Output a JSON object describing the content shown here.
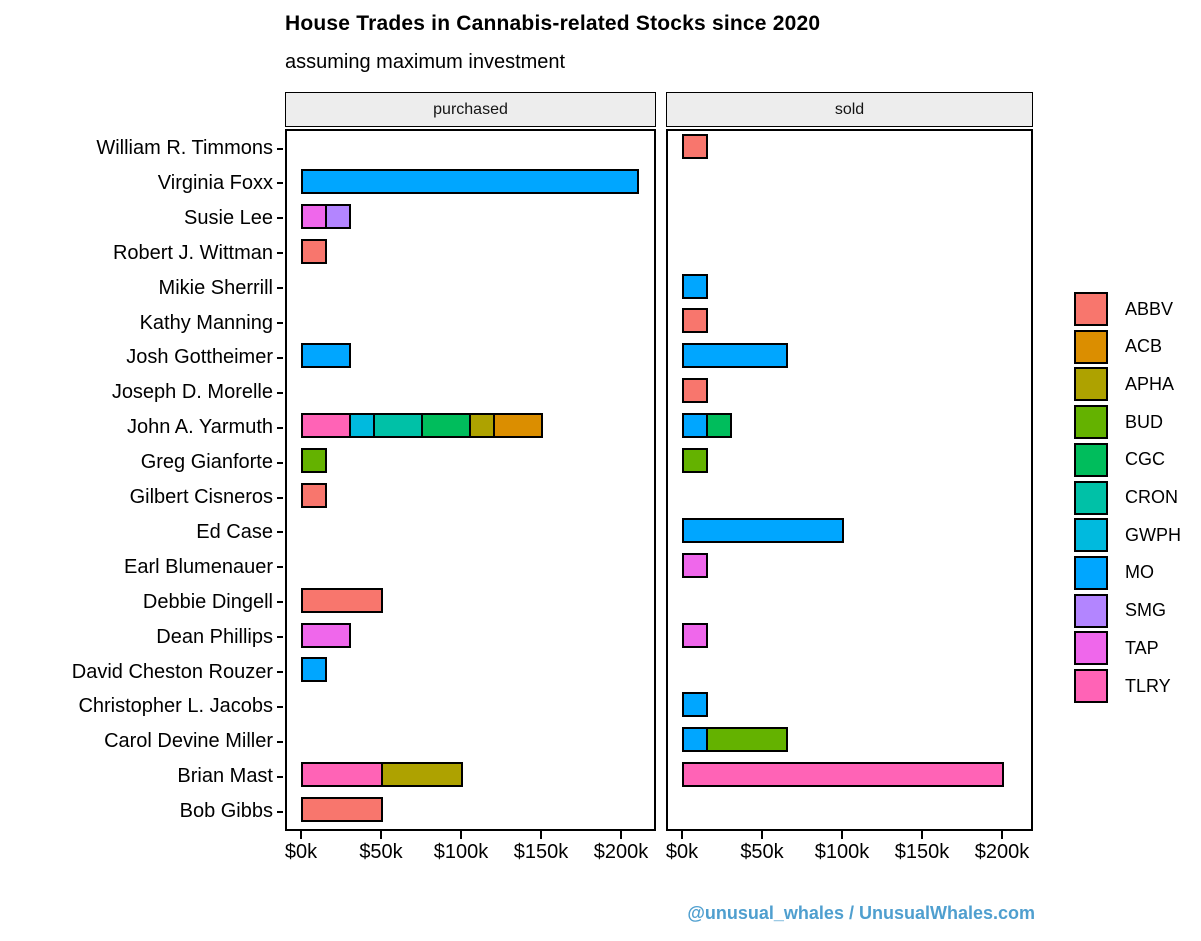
{
  "chart_data": {
    "type": "bar",
    "orientation": "horizontal",
    "stacked": true,
    "grid": false,
    "title": "House Trades in Cannabis-related Stocks since 2020",
    "subtitle": "assuming maximum investment",
    "caption": "@unusual_whales / UnusualWhales.com",
    "facet_labels": [
      "purchased",
      "sold"
    ],
    "x_axis": {
      "tick_labels": [
        "$0k",
        "$50k",
        "$100k",
        "$150k",
        "$200k"
      ],
      "tick_values_k": [
        0,
        50,
        100,
        150,
        200
      ],
      "unit": "USD thousands",
      "range_k": [
        0,
        220
      ]
    },
    "legend": {
      "position": "right",
      "entries": [
        {
          "label": "ABBV",
          "color": "#F8766D"
        },
        {
          "label": "ACB",
          "color": "#DB8E00"
        },
        {
          "label": "APHA",
          "color": "#AEA200"
        },
        {
          "label": "BUD",
          "color": "#64B200"
        },
        {
          "label": "CGC",
          "color": "#00BD5C"
        },
        {
          "label": "CRON",
          "color": "#00C1A7"
        },
        {
          "label": "GWPH",
          "color": "#00BADE"
        },
        {
          "label": "MO",
          "color": "#00A6FF"
        },
        {
          "label": "SMG",
          "color": "#B385FF"
        },
        {
          "label": "TAP",
          "color": "#EF67EB"
        },
        {
          "label": "TLRY",
          "color": "#FF63B6"
        }
      ]
    },
    "rows": [
      {
        "name": "William R. Timmons",
        "purchased": [],
        "sold": [
          {
            "ticker": "ABBV",
            "value_k": 15
          }
        ]
      },
      {
        "name": "Virginia Foxx",
        "purchased": [
          {
            "ticker": "MO",
            "value_k": 210
          }
        ],
        "sold": []
      },
      {
        "name": "Susie Lee",
        "purchased": [
          {
            "ticker": "TAP",
            "value_k": 15
          },
          {
            "ticker": "SMG",
            "value_k": 15
          }
        ],
        "sold": []
      },
      {
        "name": "Robert J. Wittman",
        "purchased": [
          {
            "ticker": "ABBV",
            "value_k": 15
          }
        ],
        "sold": []
      },
      {
        "name": "Mikie Sherrill",
        "purchased": [],
        "sold": [
          {
            "ticker": "MO",
            "value_k": 15
          }
        ]
      },
      {
        "name": "Kathy Manning",
        "purchased": [],
        "sold": [
          {
            "ticker": "ABBV",
            "value_k": 15
          }
        ]
      },
      {
        "name": "Josh Gottheimer",
        "purchased": [
          {
            "ticker": "MO",
            "value_k": 30
          }
        ],
        "sold": [
          {
            "ticker": "MO",
            "value_k": 65
          }
        ]
      },
      {
        "name": "Joseph D. Morelle",
        "purchased": [],
        "sold": [
          {
            "ticker": "ABBV",
            "value_k": 15
          }
        ]
      },
      {
        "name": "John A. Yarmuth",
        "purchased": [
          {
            "ticker": "TLRY",
            "value_k": 30
          },
          {
            "ticker": "GWPH",
            "value_k": 15
          },
          {
            "ticker": "CRON",
            "value_k": 30
          },
          {
            "ticker": "CGC",
            "value_k": 30
          },
          {
            "ticker": "APHA",
            "value_k": 15
          },
          {
            "ticker": "ACB",
            "value_k": 30
          }
        ],
        "sold": [
          {
            "ticker": "MO",
            "value_k": 15
          },
          {
            "ticker": "CGC",
            "value_k": 15
          }
        ]
      },
      {
        "name": "Greg Gianforte",
        "purchased": [
          {
            "ticker": "BUD",
            "value_k": 15
          }
        ],
        "sold": [
          {
            "ticker": "BUD",
            "value_k": 15
          }
        ]
      },
      {
        "name": "Gilbert Cisneros",
        "purchased": [
          {
            "ticker": "ABBV",
            "value_k": 15
          }
        ],
        "sold": []
      },
      {
        "name": "Ed Case",
        "purchased": [],
        "sold": [
          {
            "ticker": "MO",
            "value_k": 100
          }
        ]
      },
      {
        "name": "Earl Blumenauer",
        "purchased": [],
        "sold": [
          {
            "ticker": "TAP",
            "value_k": 15
          }
        ]
      },
      {
        "name": "Debbie Dingell",
        "purchased": [
          {
            "ticker": "ABBV",
            "value_k": 50
          }
        ],
        "sold": []
      },
      {
        "name": "Dean Phillips",
        "purchased": [
          {
            "ticker": "TAP",
            "value_k": 30
          }
        ],
        "sold": [
          {
            "ticker": "TAP",
            "value_k": 15
          }
        ]
      },
      {
        "name": "David Cheston Rouzer",
        "purchased": [
          {
            "ticker": "MO",
            "value_k": 15
          }
        ],
        "sold": []
      },
      {
        "name": "Christopher L. Jacobs",
        "purchased": [],
        "sold": [
          {
            "ticker": "MO",
            "value_k": 15
          }
        ]
      },
      {
        "name": "Carol Devine Miller",
        "purchased": [],
        "sold": [
          {
            "ticker": "MO",
            "value_k": 15
          },
          {
            "ticker": "BUD",
            "value_k": 50
          }
        ]
      },
      {
        "name": "Brian Mast",
        "purchased": [
          {
            "ticker": "TLRY",
            "value_k": 50
          },
          {
            "ticker": "APHA",
            "value_k": 50
          }
        ],
        "sold": [
          {
            "ticker": "TLRY",
            "value_k": 200
          }
        ]
      },
      {
        "name": "Bob Gibbs",
        "purchased": [
          {
            "ticker": "ABBV",
            "value_k": 50
          }
        ],
        "sold": []
      }
    ]
  },
  "colors": {
    "caption": "#4F9FCF",
    "strip_background": "#EDEDED",
    "bar_outline": "#000000"
  }
}
